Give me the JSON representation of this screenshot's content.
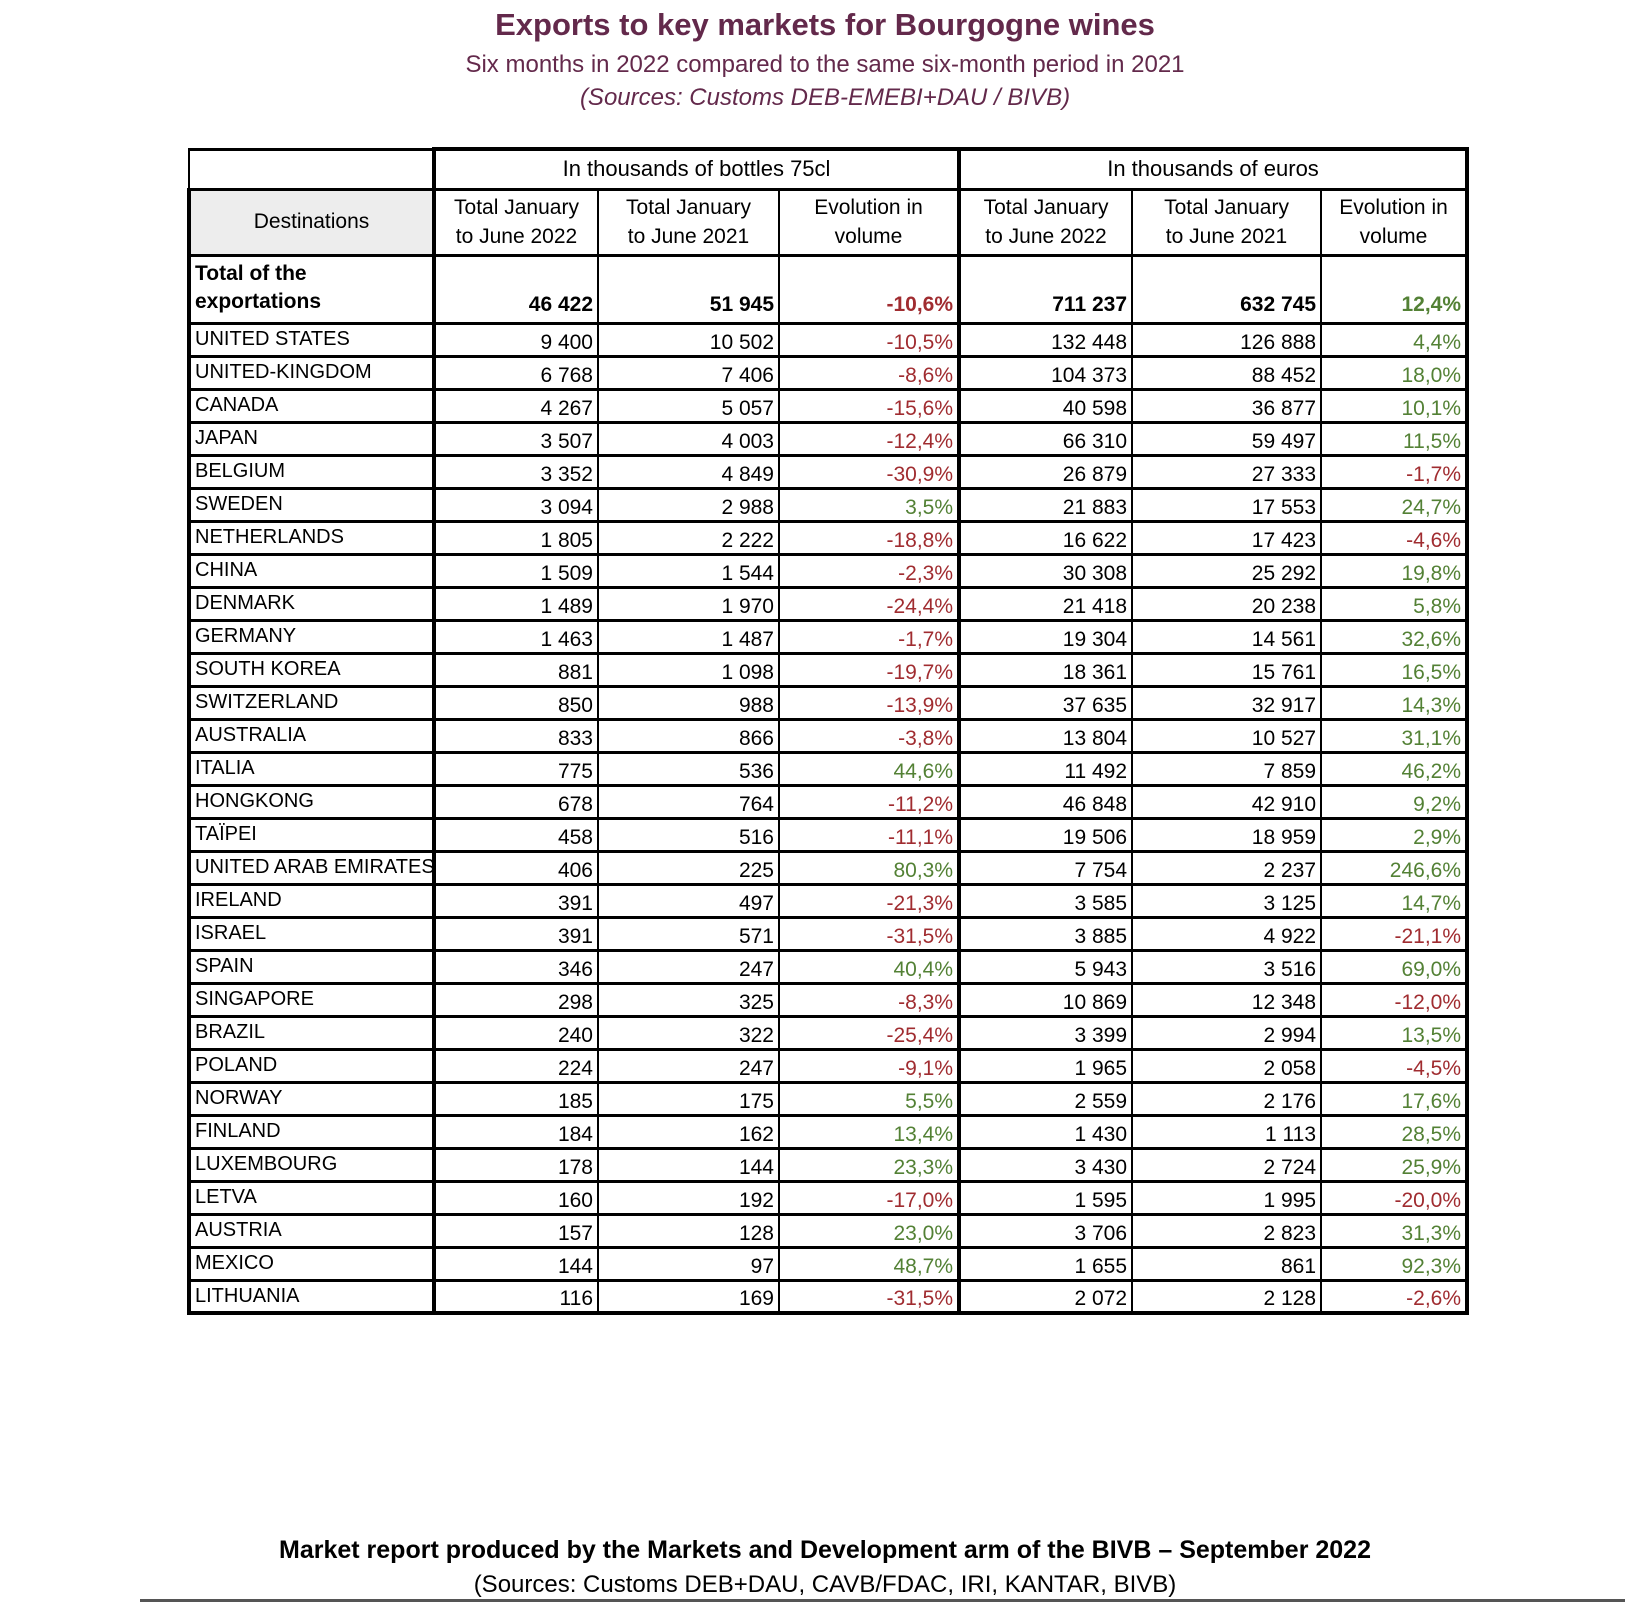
{
  "title": "Exports to key markets for Bourgogne wines",
  "subtitle": "Six months in 2022 compared to the same six-month period in 2021",
  "sources_line": "(Sources: Customs DEB-EMEBI+DAU / BIVB)",
  "colors": {
    "accent_plum": "#63294B",
    "negative_red": "#A02C30",
    "positive_green": "#538135",
    "header_gray": "#EDEDED"
  },
  "table": {
    "group_headers": [
      "In thousands of bottles 75cl",
      "In thousands of euros"
    ],
    "destinations_label": "Destinations",
    "column_headers": [
      {
        "line1": "Total January",
        "line2": "to June 2022"
      },
      {
        "line1": "Total January",
        "line2": "to June 2021"
      },
      {
        "line1": "Evolution in",
        "line2": "volume"
      },
      {
        "line1": "Total January",
        "line2": "to June 2022"
      },
      {
        "line1": "Total January",
        "line2": "to June 2021"
      },
      {
        "line1": "Evolution in",
        "line2": "volume"
      }
    ],
    "total_row": {
      "label_line1": "Total of the",
      "label_line2": "exportations",
      "values": [
        "46 422",
        "51 945",
        "-10,6%",
        "711 237",
        "632 745",
        "12,4%"
      ]
    },
    "rows": [
      {
        "country": "UNITED STATES",
        "values": [
          "9 400",
          "10 502",
          "-10,5%",
          "132 448",
          "126 888",
          "4,4%"
        ]
      },
      {
        "country": "UNITED-KINGDOM",
        "values": [
          "6 768",
          "7 406",
          "-8,6%",
          "104 373",
          "88 452",
          "18,0%"
        ]
      },
      {
        "country": "CANADA",
        "values": [
          "4 267",
          "5 057",
          "-15,6%",
          "40 598",
          "36 877",
          "10,1%"
        ]
      },
      {
        "country": "JAPAN",
        "values": [
          "3 507",
          "4 003",
          "-12,4%",
          "66 310",
          "59 497",
          "11,5%"
        ]
      },
      {
        "country": "BELGIUM",
        "values": [
          "3 352",
          "4 849",
          "-30,9%",
          "26 879",
          "27 333",
          "-1,7%"
        ]
      },
      {
        "country": "SWEDEN",
        "values": [
          "3 094",
          "2 988",
          "3,5%",
          "21 883",
          "17 553",
          "24,7%"
        ]
      },
      {
        "country": "NETHERLANDS",
        "values": [
          "1 805",
          "2 222",
          "-18,8%",
          "16 622",
          "17 423",
          "-4,6%"
        ]
      },
      {
        "country": "CHINA",
        "values": [
          "1 509",
          "1 544",
          "-2,3%",
          "30 308",
          "25 292",
          "19,8%"
        ]
      },
      {
        "country": "DENMARK",
        "values": [
          "1 489",
          "1 970",
          "-24,4%",
          "21 418",
          "20 238",
          "5,8%"
        ]
      },
      {
        "country": "GERMANY",
        "values": [
          "1 463",
          "1 487",
          "-1,7%",
          "19 304",
          "14 561",
          "32,6%"
        ]
      },
      {
        "country": "SOUTH KOREA",
        "values": [
          "881",
          "1 098",
          "-19,7%",
          "18 361",
          "15 761",
          "16,5%"
        ]
      },
      {
        "country": "SWITZERLAND",
        "values": [
          "850",
          "988",
          "-13,9%",
          "37 635",
          "32 917",
          "14,3%"
        ]
      },
      {
        "country": "AUSTRALIA",
        "values": [
          "833",
          "866",
          "-3,8%",
          "13 804",
          "10 527",
          "31,1%"
        ]
      },
      {
        "country": "ITALIA",
        "values": [
          "775",
          "536",
          "44,6%",
          "11 492",
          "7 859",
          "46,2%"
        ]
      },
      {
        "country": "HONGKONG",
        "values": [
          "678",
          "764",
          "-11,2%",
          "46 848",
          "42 910",
          "9,2%"
        ]
      },
      {
        "country": "TAÏPEI",
        "values": [
          "458",
          "516",
          "-11,1%",
          "19 506",
          "18 959",
          "2,9%"
        ]
      },
      {
        "country": "UNITED ARAB EMIRATES",
        "values": [
          "406",
          "225",
          "80,3%",
          "7 754",
          "2 237",
          "246,6%"
        ]
      },
      {
        "country": "IRELAND",
        "values": [
          "391",
          "497",
          "-21,3%",
          "3 585",
          "3 125",
          "14,7%"
        ]
      },
      {
        "country": "ISRAEL",
        "values": [
          "391",
          "571",
          "-31,5%",
          "3 885",
          "4 922",
          "-21,1%"
        ]
      },
      {
        "country": "SPAIN",
        "values": [
          "346",
          "247",
          "40,4%",
          "5 943",
          "3 516",
          "69,0%"
        ]
      },
      {
        "country": "SINGAPORE",
        "values": [
          "298",
          "325",
          "-8,3%",
          "10 869",
          "12 348",
          "-12,0%"
        ]
      },
      {
        "country": "BRAZIL",
        "values": [
          "240",
          "322",
          "-25,4%",
          "3 399",
          "2 994",
          "13,5%"
        ]
      },
      {
        "country": "POLAND",
        "values": [
          "224",
          "247",
          "-9,1%",
          "1 965",
          "2 058",
          "-4,5%"
        ]
      },
      {
        "country": "NORWAY",
        "values": [
          "185",
          "175",
          "5,5%",
          "2 559",
          "2 176",
          "17,6%"
        ]
      },
      {
        "country": "FINLAND",
        "values": [
          "184",
          "162",
          "13,4%",
          "1 430",
          "1 113",
          "28,5%"
        ]
      },
      {
        "country": "LUXEMBOURG",
        "values": [
          "178",
          "144",
          "23,3%",
          "3 430",
          "2 724",
          "25,9%"
        ]
      },
      {
        "country": "LETVA",
        "values": [
          "160",
          "192",
          "-17,0%",
          "1 595",
          "1 995",
          "-20,0%"
        ]
      },
      {
        "country": "AUSTRIA",
        "values": [
          "157",
          "128",
          "23,0%",
          "3 706",
          "2 823",
          "31,3%"
        ]
      },
      {
        "country": "MEXICO",
        "values": [
          "144",
          "97",
          "48,7%",
          "1 655",
          "861",
          "92,3%"
        ]
      },
      {
        "country": "LITHUANIA",
        "values": [
          "116",
          "169",
          "-31,5%",
          "2 072",
          "2 128",
          "-2,6%"
        ]
      }
    ]
  },
  "footer": {
    "line1": "Market report produced by the Markets and Development arm of the BIVB – September 2022",
    "line2": "(Sources: Customs DEB+DAU, CAVB/FDAC, IRI, KANTAR, BIVB)"
  }
}
